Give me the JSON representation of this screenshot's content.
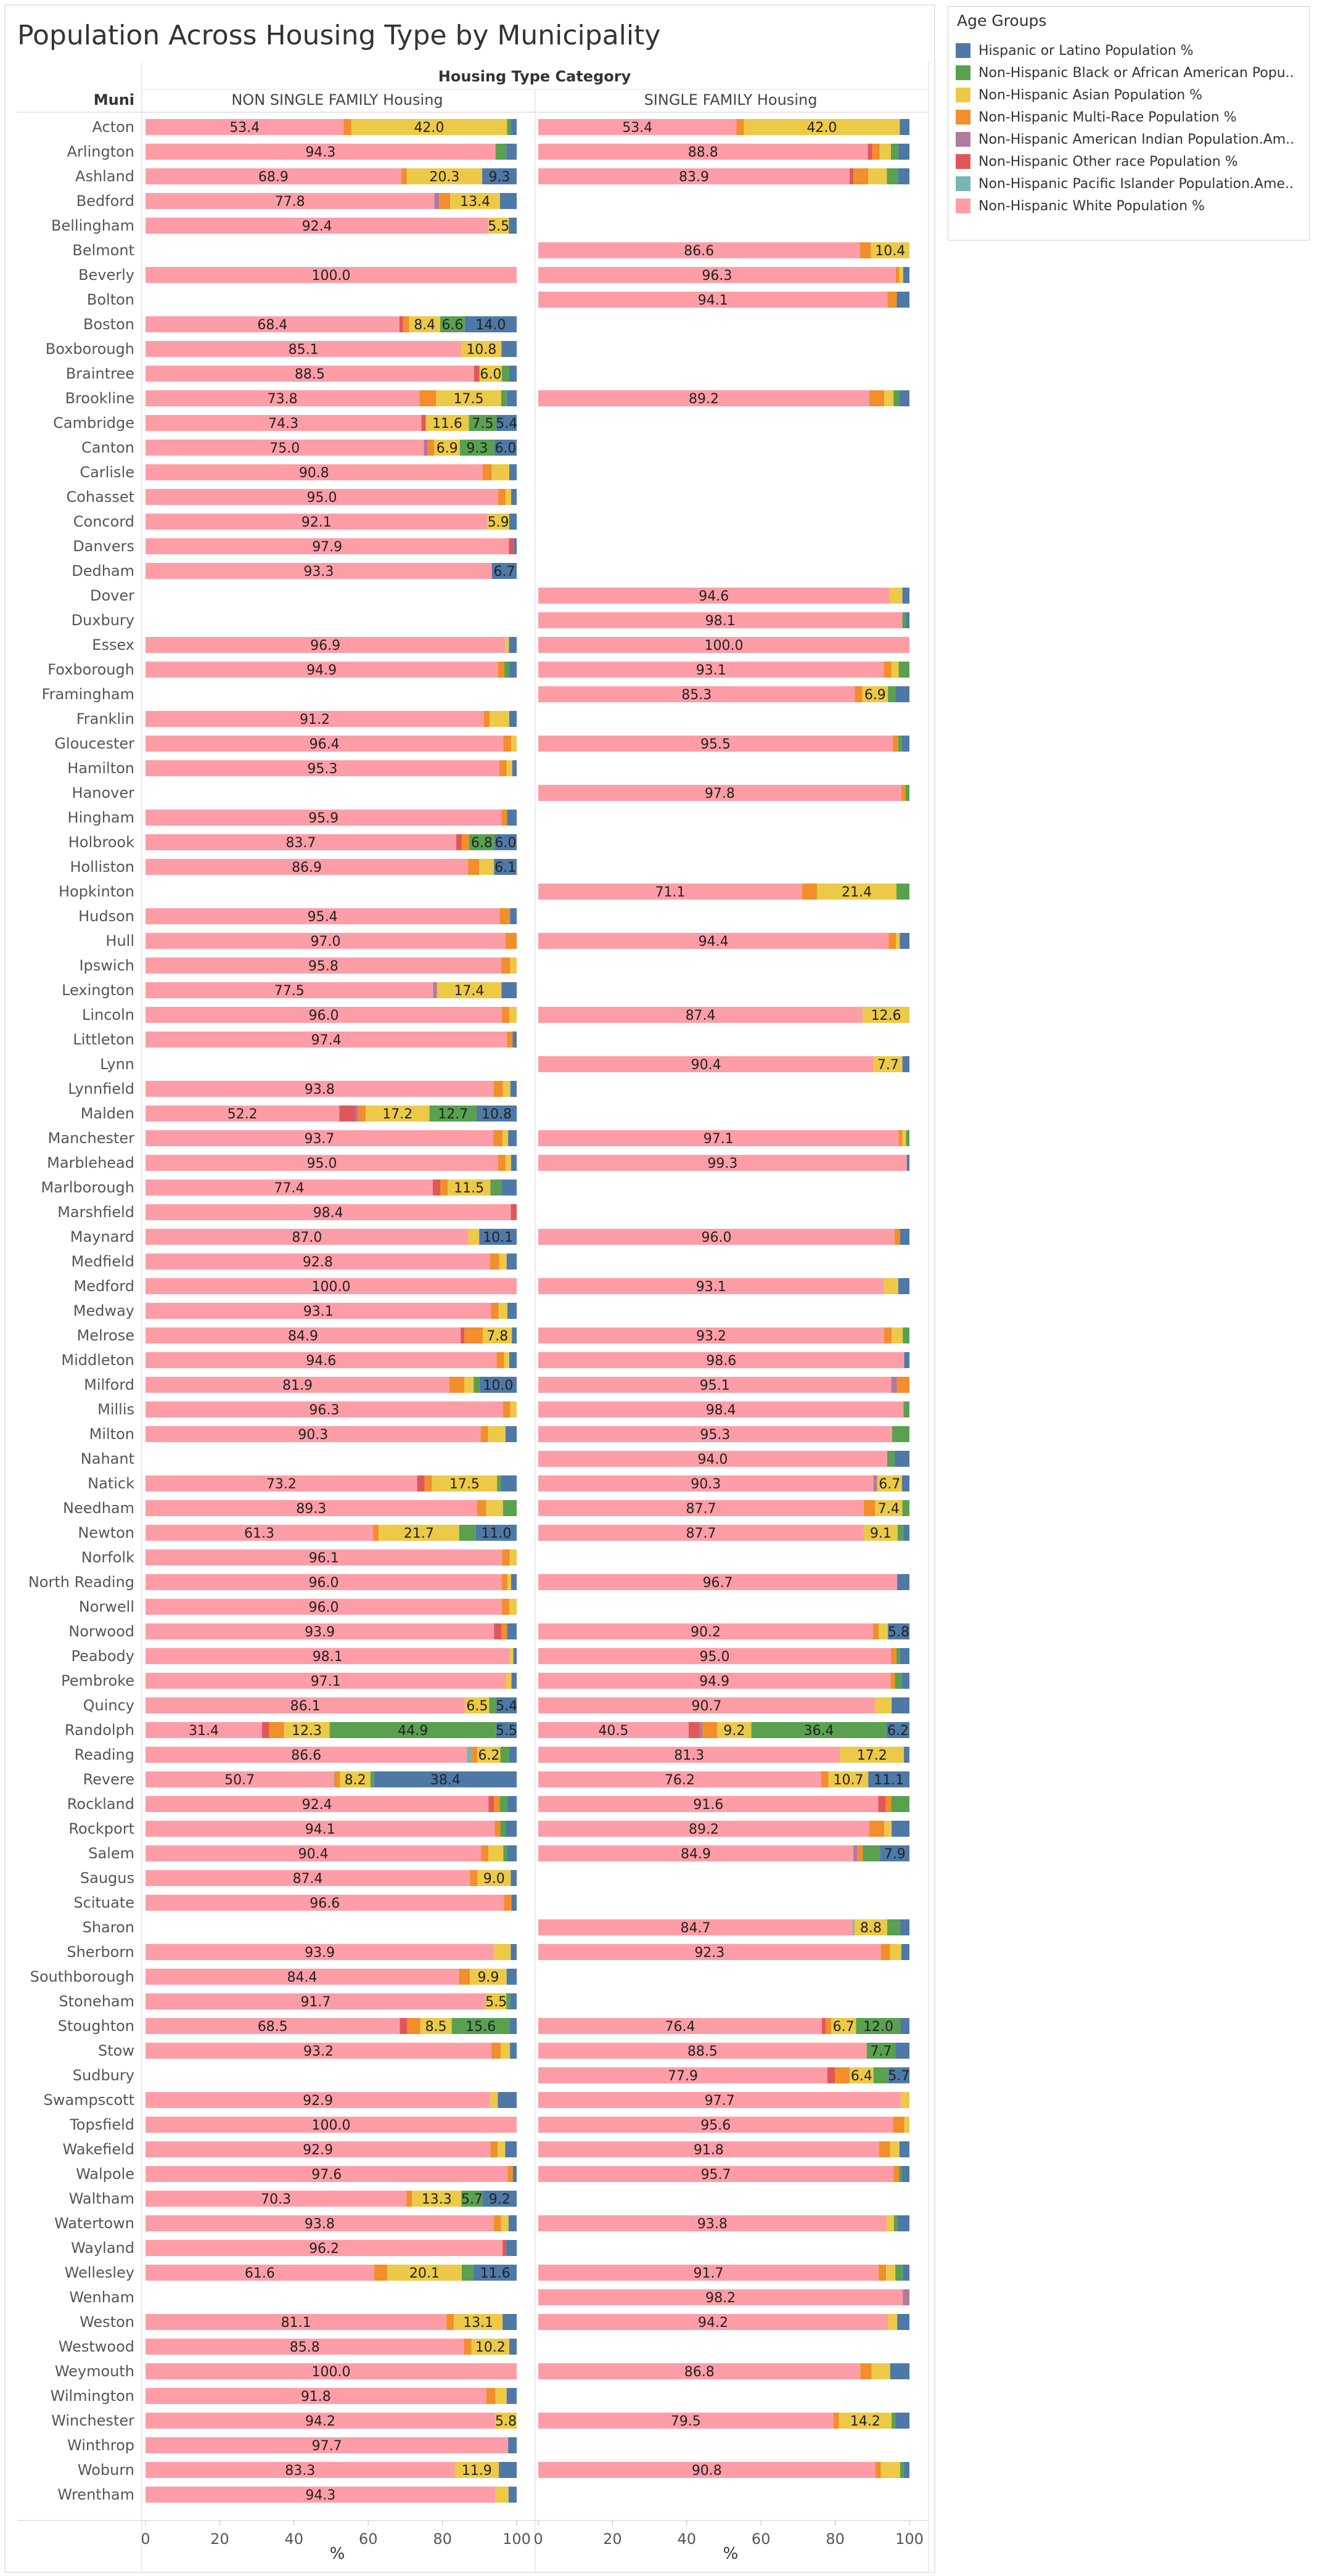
{
  "title": "Population Across Housing Type by Municipality",
  "column_group_title": "Housing Type Category",
  "row_header": "Muni",
  "panels": [
    "NON SINGLE FAMILY Housing",
    "SINGLE FAMILY Housing"
  ],
  "legend": {
    "title": "Age Groups",
    "items": [
      {
        "label": "Hispanic or Latino Population %",
        "color": "#4e79a7"
      },
      {
        "label": "Non-Hispanic  Black or African American Popu..",
        "color": "#59a14f"
      },
      {
        "label": "Non-Hispanic  Asian Population %",
        "color": "#edc948"
      },
      {
        "label": "Non-Hispanic Multi-Race Population %",
        "color": "#f28e2b"
      },
      {
        "label": "Non-Hispanic American Indian Population.Am..",
        "color": "#b07aa1"
      },
      {
        "label": "Non-Hispanic Other race Population %",
        "color": "#e15759"
      },
      {
        "label": "Non-Hispanic Pacific Islander Population.Ame..",
        "color": "#76b7b2"
      },
      {
        "label": "Non-Hispanic White Population %",
        "color": "#ff9da7"
      }
    ]
  },
  "chart_data": {
    "type": "bar",
    "stacked": true,
    "orientation": "horizontal",
    "xlabel": "%",
    "xlim": [
      0,
      100
    ],
    "xticks": [
      0,
      20,
      40,
      60,
      80,
      100
    ],
    "series_order": [
      "white",
      "pacific",
      "other",
      "amind",
      "multi",
      "asian",
      "black",
      "hispanic"
    ],
    "colors": {
      "white": "#ff9da7",
      "pacific": "#76b7b2",
      "other": "#e15759",
      "amind": "#b07aa1",
      "multi": "#f28e2b",
      "asian": "#edc948",
      "black": "#59a14f",
      "hispanic": "#4e79a7"
    },
    "categories": [
      "Acton",
      "Arlington",
      "Ashland",
      "Bedford",
      "Bellingham",
      "Belmont",
      "Beverly",
      "Bolton",
      "Boston",
      "Boxborough",
      "Braintree",
      "Brookline",
      "Cambridge",
      "Canton",
      "Carlisle",
      "Cohasset",
      "Concord",
      "Danvers",
      "Dedham",
      "Dover",
      "Duxbury",
      "Essex",
      "Foxborough",
      "Framingham",
      "Franklin",
      "Gloucester",
      "Hamilton",
      "Hanover",
      "Hingham",
      "Holbrook",
      "Holliston",
      "Hopkinton",
      "Hudson",
      "Hull",
      "Ipswich",
      "Lexington",
      "Lincoln",
      "Littleton",
      "Lynn",
      "Lynnfield",
      "Malden",
      "Manchester",
      "Marblehead",
      "Marlborough",
      "Marshfield",
      "Maynard",
      "Medfield",
      "Medford",
      "Medway",
      "Melrose",
      "Middleton",
      "Milford",
      "Millis",
      "Milton",
      "Nahant",
      "Natick",
      "Needham",
      "Newton",
      "Norfolk",
      "North Reading",
      "Norwell",
      "Norwood",
      "Peabody",
      "Pembroke",
      "Quincy",
      "Randolph",
      "Reading",
      "Revere",
      "Rockland",
      "Rockport",
      "Salem",
      "Saugus",
      "Scituate",
      "Sharon",
      "Sherborn",
      "Southborough",
      "Stoneham",
      "Stoughton",
      "Stow",
      "Sudbury",
      "Swampscott",
      "Topsfield",
      "Wakefield",
      "Walpole",
      "Waltham",
      "Watertown",
      "Wayland",
      "Wellesley",
      "Wenham",
      "Weston",
      "Westwood",
      "Weymouth",
      "Wilmington",
      "Winchester",
      "Winthrop",
      "Woburn",
      "Wrentham"
    ],
    "non_single_family": [
      {
        "white": 53.4,
        "multi": 2.0,
        "asian": 42.0,
        "black": 1.0,
        "hispanic": 1.6
      },
      {
        "white": 94.3,
        "black": 2.9,
        "hispanic": 2.8
      },
      {
        "white": 68.9,
        "multi": 1.5,
        "asian": 20.3,
        "hispanic": 9.3
      },
      {
        "white": 77.8,
        "amind": 1.3,
        "multi": 3.0,
        "asian": 13.4,
        "hispanic": 4.5
      },
      {
        "white": 92.4,
        "asian": 5.5,
        "hispanic": 2.1
      },
      null,
      {
        "white": 100.0
      },
      null,
      {
        "white": 68.4,
        "other": 1.0,
        "multi": 1.6,
        "asian": 8.4,
        "black": 6.6,
        "hispanic": 14.0
      },
      {
        "white": 85.1,
        "asian": 10.8,
        "hispanic": 4.1
      },
      {
        "white": 88.5,
        "other": 1.5,
        "asian": 6.0,
        "black": 2.0,
        "hispanic": 2.0
      },
      {
        "white": 73.8,
        "multi": 4.5,
        "asian": 17.5,
        "black": 1.5,
        "hispanic": 2.7
      },
      {
        "white": 74.3,
        "other": 1.2,
        "asian": 11.6,
        "black": 7.5,
        "hispanic": 5.4
      },
      {
        "white": 75.0,
        "amind": 1.0,
        "multi": 1.8,
        "asian": 6.9,
        "black": 9.3,
        "hispanic": 6.0
      },
      {
        "white": 90.8,
        "multi": 2.5,
        "asian": 4.7,
        "hispanic": 2.0
      },
      {
        "white": 95.0,
        "multi": 2.0,
        "asian": 1.5,
        "hispanic": 1.5
      },
      {
        "white": 92.1,
        "asian": 5.9,
        "hispanic": 2.0
      },
      {
        "white": 97.9,
        "other": 1.4,
        "hispanic": 0.7
      },
      {
        "white": 93.3,
        "hispanic": 6.7
      },
      null,
      null,
      {
        "white": 96.9,
        "asian": 1.0,
        "hispanic": 2.1
      },
      {
        "white": 94.9,
        "multi": 1.8,
        "black": 1.3,
        "hispanic": 2.0
      },
      null,
      {
        "white": 91.2,
        "multi": 1.5,
        "asian": 5.3,
        "hispanic": 2.0
      },
      {
        "white": 96.4,
        "multi": 2.1,
        "asian": 1.5
      },
      {
        "white": 95.3,
        "multi": 2.0,
        "asian": 1.5,
        "hispanic": 1.2
      },
      null,
      {
        "white": 95.9,
        "multi": 1.5,
        "hispanic": 2.6
      },
      {
        "white": 83.7,
        "other": 1.5,
        "multi": 2.0,
        "black": 6.8,
        "hispanic": 6.0
      },
      {
        "white": 86.9,
        "multi": 3.0,
        "asian": 4.0,
        "hispanic": 6.1
      },
      null,
      {
        "white": 95.4,
        "multi": 2.8,
        "hispanic": 1.8
      },
      {
        "white": 97.0,
        "multi": 3.0
      },
      {
        "white": 95.8,
        "multi": 2.5,
        "asian": 1.7
      },
      {
        "white": 77.5,
        "amind": 1.0,
        "asian": 17.4,
        "hispanic": 4.1
      },
      {
        "white": 96.0,
        "multi": 2.0,
        "asian": 2.0
      },
      {
        "white": 97.4,
        "multi": 1.5,
        "hispanic": 1.1
      },
      null,
      {
        "white": 93.8,
        "multi": 2.5,
        "asian": 2.0,
        "hispanic": 1.7
      },
      {
        "white": 52.2,
        "other": 4.5,
        "multi": 2.0,
        "asian": 17.2,
        "amind": 0.6,
        "black": 12.7,
        "hispanic": 10.8
      },
      {
        "white": 93.7,
        "multi": 2.5,
        "asian": 1.5,
        "hispanic": 2.3
      },
      {
        "white": 95.0,
        "multi": 2.0,
        "asian": 1.5,
        "hispanic": 1.5
      },
      {
        "white": 77.4,
        "other": 2.0,
        "multi": 2.0,
        "asian": 11.5,
        "black": 3.0,
        "hispanic": 4.1
      },
      {
        "white": 98.4,
        "other": 1.6
      },
      {
        "white": 87.0,
        "asian": 2.9,
        "hispanic": 10.1
      },
      {
        "white": 92.8,
        "multi": 2.5,
        "asian": 2.0,
        "hispanic": 2.7
      },
      {
        "white": 100.0
      },
      {
        "white": 93.1,
        "multi": 2.0,
        "asian": 2.4,
        "hispanic": 2.5
      },
      {
        "white": 84.9,
        "other": 1.0,
        "multi": 5.0,
        "asian": 7.8,
        "hispanic": 1.3
      },
      {
        "white": 94.6,
        "multi": 2.0,
        "asian": 1.4,
        "hispanic": 2.0
      },
      {
        "white": 81.9,
        "multi": 4.0,
        "asian": 2.5,
        "black": 1.6,
        "hispanic": 10.0
      },
      {
        "white": 96.3,
        "multi": 2.0,
        "asian": 1.7
      },
      {
        "white": 90.3,
        "multi": 2.0,
        "asian": 4.7,
        "hispanic": 3.0
      },
      null,
      {
        "white": 73.2,
        "other": 2.0,
        "multi": 2.0,
        "asian": 17.5,
        "black": 1.0,
        "hispanic": 4.3
      },
      {
        "white": 89.3,
        "multi": 2.5,
        "asian": 4.5,
        "black": 3.7
      },
      {
        "white": 61.3,
        "multi": 1.5,
        "asian": 21.7,
        "black": 4.5,
        "hispanic": 11.0
      },
      {
        "white": 96.1,
        "multi": 2.0,
        "asian": 1.9
      },
      {
        "white": 96.0,
        "multi": 1.5,
        "asian": 1.0,
        "hispanic": 1.5
      },
      {
        "white": 96.0,
        "multi": 2.0,
        "asian": 2.0
      },
      {
        "white": 93.9,
        "other": 2.0,
        "multi": 1.5,
        "hispanic": 2.6
      },
      {
        "white": 98.1,
        "asian": 1.0,
        "hispanic": 0.9
      },
      {
        "white": 97.1,
        "asian": 1.5,
        "hispanic": 1.4
      },
      {
        "white": 86.1,
        "asian": 6.5,
        "black": 2.0,
        "hispanic": 5.4
      },
      {
        "white": 31.4,
        "multi": 4.0,
        "asian": 12.3,
        "black": 44.9,
        "hispanic": 5.5,
        "other": 1.9
      },
      {
        "white": 86.6,
        "pacific": 1.3,
        "multi": 1.5,
        "asian": 6.2,
        "black": 2.4,
        "hispanic": 2.0
      },
      {
        "white": 50.7,
        "multi": 1.5,
        "asian": 8.2,
        "black": 1.0,
        "pacific": 0.2,
        "hispanic": 38.4
      },
      {
        "white": 92.4,
        "other": 1.5,
        "multi": 1.5,
        "black": 2.0,
        "hispanic": 2.6
      },
      {
        "white": 94.1,
        "multi": 1.5,
        "black": 1.4,
        "hispanic": 3.0
      },
      {
        "white": 90.4,
        "multi": 2.0,
        "asian": 4.0,
        "black": 1.0,
        "hispanic": 2.6
      },
      {
        "white": 87.4,
        "multi": 2.0,
        "asian": 9.0,
        "hispanic": 1.6
      },
      {
        "white": 96.6,
        "multi": 2.0,
        "hispanic": 1.4
      },
      null,
      {
        "white": 93.9,
        "asian": 4.5,
        "hispanic": 1.6
      },
      {
        "white": 84.4,
        "multi": 3.0,
        "asian": 9.9,
        "hispanic": 2.7
      },
      {
        "white": 91.7,
        "asian": 5.5,
        "black": 1.0,
        "hispanic": 1.8
      },
      {
        "white": 68.5,
        "other": 2.0,
        "multi": 3.5,
        "asian": 8.5,
        "black": 15.6,
        "hispanic": 1.9
      },
      {
        "white": 93.2,
        "multi": 2.5,
        "asian": 2.5,
        "hispanic": 1.8
      },
      null,
      {
        "white": 92.9,
        "asian": 2.0,
        "hispanic": 5.1
      },
      {
        "white": 100.0
      },
      {
        "white": 92.9,
        "multi": 2.0,
        "asian": 2.0,
        "hispanic": 3.1
      },
      {
        "white": 97.6,
        "multi": 1.4,
        "hispanic": 1.0
      },
      {
        "white": 70.3,
        "multi": 1.5,
        "asian": 13.3,
        "black": 5.7,
        "hispanic": 9.2
      },
      {
        "white": 93.8,
        "multi": 2.0,
        "asian": 2.0,
        "hispanic": 2.2
      },
      {
        "white": 96.2,
        "other": 1.0,
        "hispanic": 2.8
      },
      {
        "white": 61.6,
        "multi": 3.5,
        "asian": 20.1,
        "black": 3.2,
        "hispanic": 11.6
      },
      null,
      {
        "white": 81.1,
        "multi": 2.0,
        "asian": 13.1,
        "hispanic": 3.8
      },
      {
        "white": 85.8,
        "multi": 2.0,
        "asian": 10.2,
        "hispanic": 2.0
      },
      {
        "white": 100.0
      },
      {
        "white": 91.8,
        "multi": 2.5,
        "asian": 3.0,
        "hispanic": 2.7
      },
      {
        "white": 94.2,
        "asian": 5.8
      },
      {
        "white": 97.7,
        "hispanic": 2.3
      },
      {
        "white": 83.3,
        "asian": 11.9,
        "hispanic": 4.8
      },
      {
        "white": 94.3,
        "asian": 3.5,
        "hispanic": 2.2
      }
    ],
    "single_family": [
      {
        "white": 53.4,
        "multi": 2.0,
        "asian": 42.0,
        "hispanic": 2.6
      },
      {
        "white": 88.8,
        "other": 1.2,
        "multi": 2.0,
        "asian": 3.0,
        "black": 2.0,
        "hispanic": 3.0
      },
      {
        "white": 83.9,
        "other": 1.0,
        "multi": 4.0,
        "asian": 5.0,
        "black": 3.0,
        "hispanic": 3.1
      },
      null,
      null,
      {
        "white": 86.6,
        "multi": 3.0,
        "asian": 10.4
      },
      {
        "white": 96.3,
        "multi": 1.0,
        "asian": 1.0,
        "hispanic": 1.7
      },
      {
        "white": 94.1,
        "multi": 2.5,
        "hispanic": 3.4
      },
      null,
      null,
      null,
      {
        "white": 89.2,
        "multi": 4.0,
        "asian": 2.5,
        "black": 1.5,
        "hispanic": 2.8
      },
      null,
      null,
      null,
      null,
      null,
      null,
      null,
      {
        "white": 94.6,
        "asian": 3.5,
        "hispanic": 1.9
      },
      {
        "white": 98.1,
        "black": 1.0,
        "hispanic": 0.9
      },
      {
        "white": 100.0
      },
      {
        "white": 93.1,
        "multi": 2.0,
        "asian": 2.0,
        "black": 2.9
      },
      {
        "white": 85.3,
        "multi": 2.0,
        "asian": 6.9,
        "black": 2.0,
        "hispanic": 3.8
      },
      null,
      {
        "white": 95.5,
        "multi": 1.5,
        "black": 1.0,
        "hispanic": 2.0
      },
      null,
      {
        "white": 97.8,
        "multi": 1.2,
        "black": 1.0
      },
      null,
      null,
      null,
      {
        "white": 71.1,
        "multi": 4.0,
        "asian": 21.4,
        "black": 3.5
      },
      null,
      {
        "white": 94.4,
        "multi": 2.0,
        "asian": 1.0,
        "hispanic": 2.6
      },
      null,
      null,
      {
        "white": 87.4,
        "asian": 12.6
      },
      null,
      {
        "white": 90.4,
        "asian": 7.7,
        "hispanic": 1.9
      },
      null,
      null,
      {
        "white": 97.1,
        "multi": 1.0,
        "asian": 1.0,
        "black": 0.9
      },
      {
        "white": 99.3,
        "hispanic": 0.7
      },
      null,
      null,
      {
        "white": 96.0,
        "multi": 1.5,
        "hispanic": 2.5
      },
      null,
      {
        "white": 93.1,
        "asian": 3.9,
        "hispanic": 3.0
      },
      null,
      {
        "white": 93.2,
        "multi": 2.0,
        "asian": 3.0,
        "black": 1.8
      },
      {
        "white": 98.6,
        "hispanic": 1.4
      },
      {
        "white": 95.1,
        "amind": 1.5,
        "multi": 3.4
      },
      {
        "white": 98.4,
        "black": 1.6
      },
      {
        "white": 95.3,
        "black": 4.7
      },
      {
        "white": 94.0,
        "black": 2.0,
        "hispanic": 4.0
      },
      {
        "white": 90.3,
        "amind": 1.0,
        "asian": 6.7,
        "hispanic": 2.0
      },
      {
        "white": 87.7,
        "multi": 3.0,
        "asian": 7.4,
        "black": 1.9
      },
      {
        "white": 87.7,
        "asian": 9.1,
        "black": 1.5,
        "hispanic": 1.7
      },
      null,
      {
        "white": 96.7,
        "hispanic": 3.3
      },
      null,
      {
        "white": 90.2,
        "multi": 1.5,
        "asian": 2.5,
        "hispanic": 5.8
      },
      {
        "white": 95.0,
        "multi": 1.5,
        "black": 1.0,
        "hispanic": 2.5
      },
      {
        "white": 94.9,
        "multi": 1.2,
        "black": 1.9,
        "hispanic": 2.0
      },
      {
        "white": 90.7,
        "asian": 4.5,
        "hispanic": 4.8
      },
      {
        "white": 40.5,
        "other": 3.0,
        "multi": 4.0,
        "asian": 9.2,
        "black": 36.4,
        "hispanic": 6.2,
        "amind": 0.7
      },
      {
        "white": 81.3,
        "asian": 17.2,
        "hispanic": 1.5
      },
      {
        "white": 76.2,
        "multi": 2.0,
        "asian": 10.7,
        "hispanic": 11.1
      },
      {
        "white": 91.6,
        "other": 2.0,
        "multi": 1.5,
        "black": 4.9
      },
      {
        "white": 89.2,
        "multi": 4.0,
        "asian": 2.0,
        "hispanic": 4.8
      },
      {
        "white": 84.9,
        "amind": 1.0,
        "multi": 1.5,
        "black": 4.7,
        "hispanic": 7.9
      },
      null,
      null,
      {
        "white": 84.7,
        "black": 3.5,
        "asian": 8.8,
        "pacific": 0.5,
        "hispanic": 2.5
      },
      {
        "white": 92.3,
        "multi": 2.5,
        "asian": 3.0,
        "hispanic": 2.2
      },
      null,
      null,
      {
        "white": 76.4,
        "other": 1.0,
        "multi": 1.5,
        "asian": 6.7,
        "black": 12.0,
        "hispanic": 2.4
      },
      {
        "white": 88.5,
        "black": 7.7,
        "hispanic": 3.8
      },
      {
        "white": 77.9,
        "other": 2.0,
        "multi": 4.0,
        "asian": 6.4,
        "black": 4.0,
        "hispanic": 5.7
      },
      {
        "white": 97.7,
        "asian": 2.3
      },
      {
        "white": 95.6,
        "multi": 3.0,
        "asian": 1.4
      },
      {
        "white": 91.8,
        "multi": 3.0,
        "asian": 2.5,
        "hispanic": 2.7
      },
      {
        "white": 95.7,
        "multi": 1.5,
        "black": 0.8,
        "hispanic": 2.0
      },
      null,
      {
        "white": 93.8,
        "asian": 2.0,
        "black": 1.0,
        "hispanic": 3.2
      },
      null,
      {
        "white": 91.7,
        "multi": 2.0,
        "asian": 2.5,
        "black": 2.0,
        "hispanic": 1.8
      },
      {
        "white": 98.2,
        "amind": 1.8
      },
      {
        "white": 94.2,
        "asian": 2.5,
        "hispanic": 3.3
      },
      null,
      {
        "white": 86.8,
        "multi": 3.0,
        "asian": 5.0,
        "hispanic": 5.2
      },
      null,
      {
        "white": 79.5,
        "multi": 1.5,
        "asian": 14.2,
        "black": 1.0,
        "hispanic": 3.8
      },
      null,
      {
        "white": 90.8,
        "multi": 1.5,
        "asian": 5.2,
        "black": 1.0,
        "hispanic": 1.5
      },
      null
    ]
  }
}
